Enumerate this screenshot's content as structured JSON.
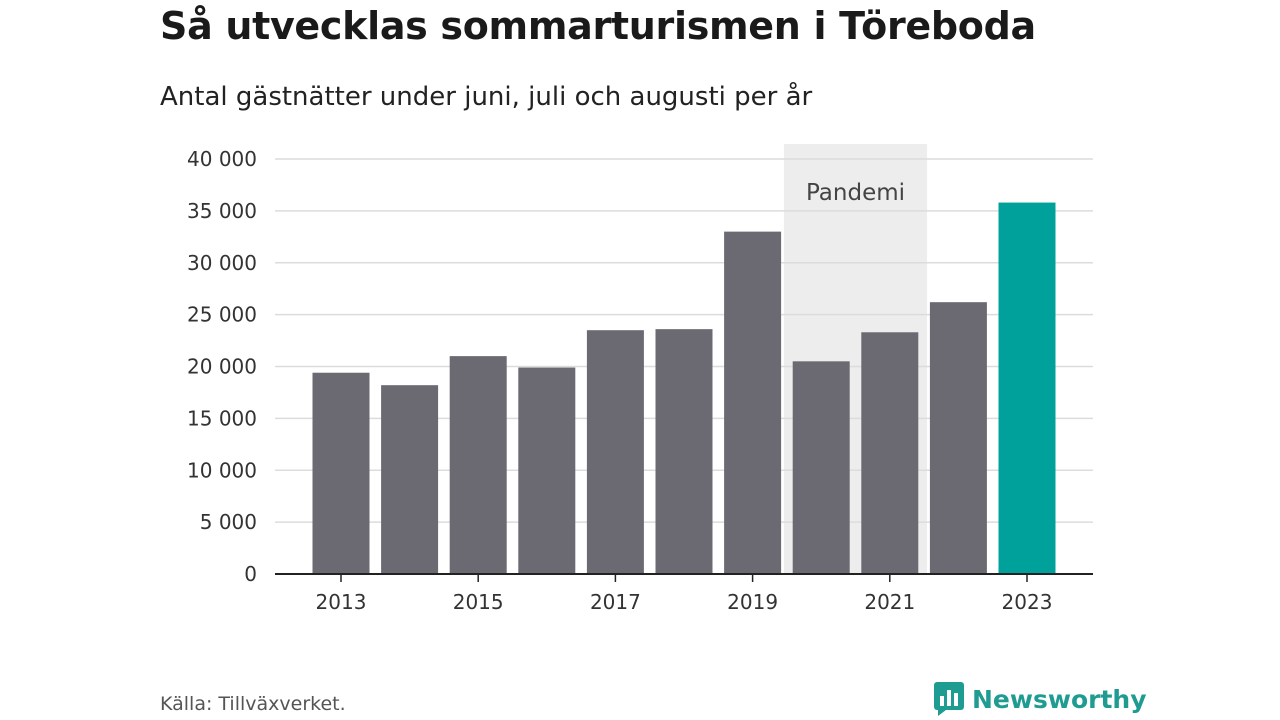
{
  "header": {
    "title": "Så utvecklas sommarturismen i Töreboda",
    "subtitle": "Antal gästnätter under juni, juli och augusti per år"
  },
  "footer": {
    "source": "Källa: Tillväxverket.",
    "brand": "Newsworthy"
  },
  "colors": {
    "bar": "#6b6a72",
    "highlight": "#00a19a",
    "band": "#ededed",
    "grid": "#dcdcdc",
    "axis": "#222222",
    "brand": "#1f9c92"
  },
  "chart_data": {
    "type": "bar",
    "title": "Så utvecklas sommarturismen i Töreboda",
    "subtitle": "Antal gästnätter under juni, juli och augusti per år",
    "categories": [
      "2013",
      "2014",
      "2015",
      "2016",
      "2017",
      "2018",
      "2019",
      "2020",
      "2021",
      "2022",
      "2023"
    ],
    "values": [
      19400,
      18200,
      21000,
      19900,
      23500,
      23600,
      33000,
      20500,
      23300,
      26200,
      35800
    ],
    "highlight_category": "2023",
    "ylim": [
      0,
      40000
    ],
    "yticks": [
      0,
      5000,
      10000,
      15000,
      20000,
      25000,
      30000,
      35000,
      40000
    ],
    "ytick_labels": [
      "0",
      "5 000",
      "10 000",
      "15 000",
      "20 000",
      "25 000",
      "30 000",
      "35 000",
      "40 000"
    ],
    "xtick_labels": [
      "2013",
      "2015",
      "2017",
      "2019",
      "2021",
      "2023"
    ],
    "grid": true,
    "annotations": [
      {
        "label": "Pandemi",
        "from": "2020",
        "to": "2021"
      }
    ]
  }
}
